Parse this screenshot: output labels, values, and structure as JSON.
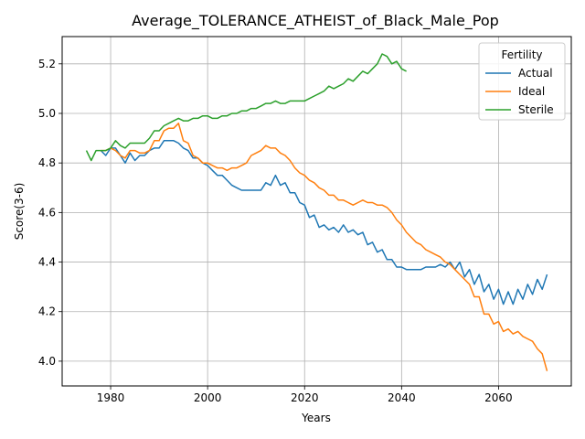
{
  "chart_data": {
    "type": "line",
    "title": "Average_TOLERANCE_ATHEIST_of_Black_Male_Pop",
    "xlabel": "Years",
    "ylabel": "Score(3-6)",
    "xlim": [
      1970,
      2075
    ],
    "ylim": [
      3.9,
      5.31
    ],
    "xticks": [
      1980,
      2000,
      2020,
      2040,
      2060
    ],
    "yticks": [
      4.0,
      4.2,
      4.4,
      4.6,
      4.8,
      5.0,
      5.2
    ],
    "ytick_labels": [
      "4.0",
      "4.2",
      "4.4",
      "4.6",
      "4.8",
      "5.0",
      "5.2"
    ],
    "grid": true,
    "legend": {
      "title": "Fertility",
      "placement": "top-right"
    },
    "series": [
      {
        "name": "Actual",
        "color": "#1f77b4",
        "x": [
          1978,
          1979,
          1980,
          1981,
          1982,
          1983,
          1984,
          1985,
          1986,
          1987,
          1988,
          1989,
          1990,
          1991,
          1992,
          1993,
          1994,
          1995,
          1996,
          1997,
          1998,
          1999,
          2000,
          2001,
          2002,
          2003,
          2004,
          2005,
          2006,
          2007,
          2008,
          2009,
          2010,
          2011,
          2012,
          2013,
          2014,
          2015,
          2016,
          2017,
          2018,
          2019,
          2020,
          2021,
          2022,
          2023,
          2024,
          2025,
          2026,
          2027,
          2028,
          2029,
          2030,
          2031,
          2032,
          2033,
          2034,
          2035,
          2036,
          2037,
          2038,
          2039,
          2040,
          2041,
          2042,
          2043,
          2044,
          2045,
          2046,
          2047,
          2048,
          2049,
          2050,
          2051,
          2052,
          2053,
          2054,
          2055,
          2056,
          2057,
          2058,
          2059,
          2060,
          2061,
          2062,
          2063,
          2064,
          2065,
          2066,
          2067,
          2068,
          2069,
          2070
        ],
        "y": [
          4.85,
          4.83,
          4.86,
          4.86,
          4.83,
          4.8,
          4.84,
          4.81,
          4.83,
          4.83,
          4.85,
          4.86,
          4.86,
          4.89,
          4.89,
          4.89,
          4.88,
          4.86,
          4.85,
          4.82,
          4.82,
          4.8,
          4.79,
          4.77,
          4.75,
          4.75,
          4.73,
          4.71,
          4.7,
          4.69,
          4.69,
          4.69,
          4.69,
          4.69,
          4.72,
          4.71,
          4.75,
          4.71,
          4.72,
          4.68,
          4.68,
          4.64,
          4.63,
          4.58,
          4.59,
          4.54,
          4.55,
          4.53,
          4.54,
          4.52,
          4.55,
          4.52,
          4.53,
          4.51,
          4.52,
          4.47,
          4.48,
          4.44,
          4.45,
          4.41,
          4.41,
          4.38,
          4.38,
          4.37,
          4.37,
          4.37,
          4.37,
          4.38,
          4.38,
          4.38,
          4.39,
          4.38,
          4.4,
          4.37,
          4.4,
          4.34,
          4.37,
          4.31,
          4.35,
          4.28,
          4.31,
          4.25,
          4.29,
          4.23,
          4.28,
          4.23,
          4.29,
          4.25,
          4.31,
          4.27,
          4.33,
          4.29,
          4.35
        ]
      },
      {
        "name": "Ideal",
        "color": "#ff7f0e",
        "x": [
          1978,
          1979,
          1980,
          1981,
          1982,
          1983,
          1984,
          1985,
          1986,
          1987,
          1988,
          1989,
          1990,
          1991,
          1992,
          1993,
          1994,
          1995,
          1996,
          1997,
          1998,
          1999,
          2000,
          2001,
          2002,
          2003,
          2004,
          2005,
          2006,
          2007,
          2008,
          2009,
          2010,
          2011,
          2012,
          2013,
          2014,
          2015,
          2016,
          2017,
          2018,
          2019,
          2020,
          2021,
          2022,
          2023,
          2024,
          2025,
          2026,
          2027,
          2028,
          2029,
          2030,
          2031,
          2032,
          2033,
          2034,
          2035,
          2036,
          2037,
          2038,
          2039,
          2040,
          2041,
          2042,
          2043,
          2044,
          2045,
          2046,
          2047,
          2048,
          2049,
          2050,
          2051,
          2052,
          2053,
          2054,
          2055,
          2056,
          2057,
          2058,
          2059,
          2060,
          2061,
          2062,
          2063,
          2064,
          2065,
          2066,
          2067,
          2068,
          2069,
          2070
        ],
        "y": [
          4.85,
          4.85,
          4.86,
          4.85,
          4.83,
          4.82,
          4.85,
          4.85,
          4.84,
          4.84,
          4.85,
          4.89,
          4.89,
          4.93,
          4.94,
          4.94,
          4.96,
          4.89,
          4.88,
          4.83,
          4.82,
          4.8,
          4.8,
          4.79,
          4.78,
          4.78,
          4.77,
          4.78,
          4.78,
          4.79,
          4.8,
          4.83,
          4.84,
          4.85,
          4.87,
          4.86,
          4.86,
          4.84,
          4.83,
          4.81,
          4.78,
          4.76,
          4.75,
          4.73,
          4.72,
          4.7,
          4.69,
          4.67,
          4.67,
          4.65,
          4.65,
          4.64,
          4.63,
          4.64,
          4.65,
          4.64,
          4.64,
          4.63,
          4.63,
          4.62,
          4.6,
          4.57,
          4.55,
          4.52,
          4.5,
          4.48,
          4.47,
          4.45,
          4.44,
          4.43,
          4.42,
          4.4,
          4.39,
          4.37,
          4.35,
          4.33,
          4.31,
          4.26,
          4.26,
          4.19,
          4.19,
          4.15,
          4.16,
          4.12,
          4.13,
          4.11,
          4.12,
          4.1,
          4.09,
          4.08,
          4.05,
          4.03,
          3.96
        ]
      },
      {
        "name": "Sterile",
        "color": "#2ca02c",
        "x": [
          1975,
          1976,
          1977,
          1978,
          1979,
          1980,
          1981,
          1982,
          1983,
          1984,
          1985,
          1986,
          1987,
          1988,
          1989,
          1990,
          1991,
          1992,
          1993,
          1994,
          1995,
          1996,
          1997,
          1998,
          1999,
          2000,
          2001,
          2002,
          2003,
          2004,
          2005,
          2006,
          2007,
          2008,
          2009,
          2010,
          2011,
          2012,
          2013,
          2014,
          2015,
          2016,
          2017,
          2018,
          2019,
          2020,
          2021,
          2022,
          2023,
          2024,
          2025,
          2026,
          2027,
          2028,
          2029,
          2030,
          2031,
          2032,
          2033,
          2034,
          2035,
          2036,
          2037,
          2038,
          2039,
          2040,
          2041
        ],
        "y": [
          4.85,
          4.81,
          4.85,
          4.85,
          4.85,
          4.86,
          4.89,
          4.87,
          4.86,
          4.88,
          4.88,
          4.88,
          4.88,
          4.9,
          4.93,
          4.93,
          4.95,
          4.96,
          4.97,
          4.98,
          4.97,
          4.97,
          4.98,
          4.98,
          4.99,
          4.99,
          4.98,
          4.98,
          4.99,
          4.99,
          5.0,
          5.0,
          5.01,
          5.01,
          5.02,
          5.02,
          5.03,
          5.04,
          5.04,
          5.05,
          5.04,
          5.04,
          5.05,
          5.05,
          5.05,
          5.05,
          5.06,
          5.07,
          5.08,
          5.09,
          5.11,
          5.1,
          5.11,
          5.12,
          5.14,
          5.13,
          5.15,
          5.17,
          5.16,
          5.18,
          5.2,
          5.24,
          5.23,
          5.2,
          5.21,
          5.18,
          5.17
        ]
      }
    ]
  }
}
